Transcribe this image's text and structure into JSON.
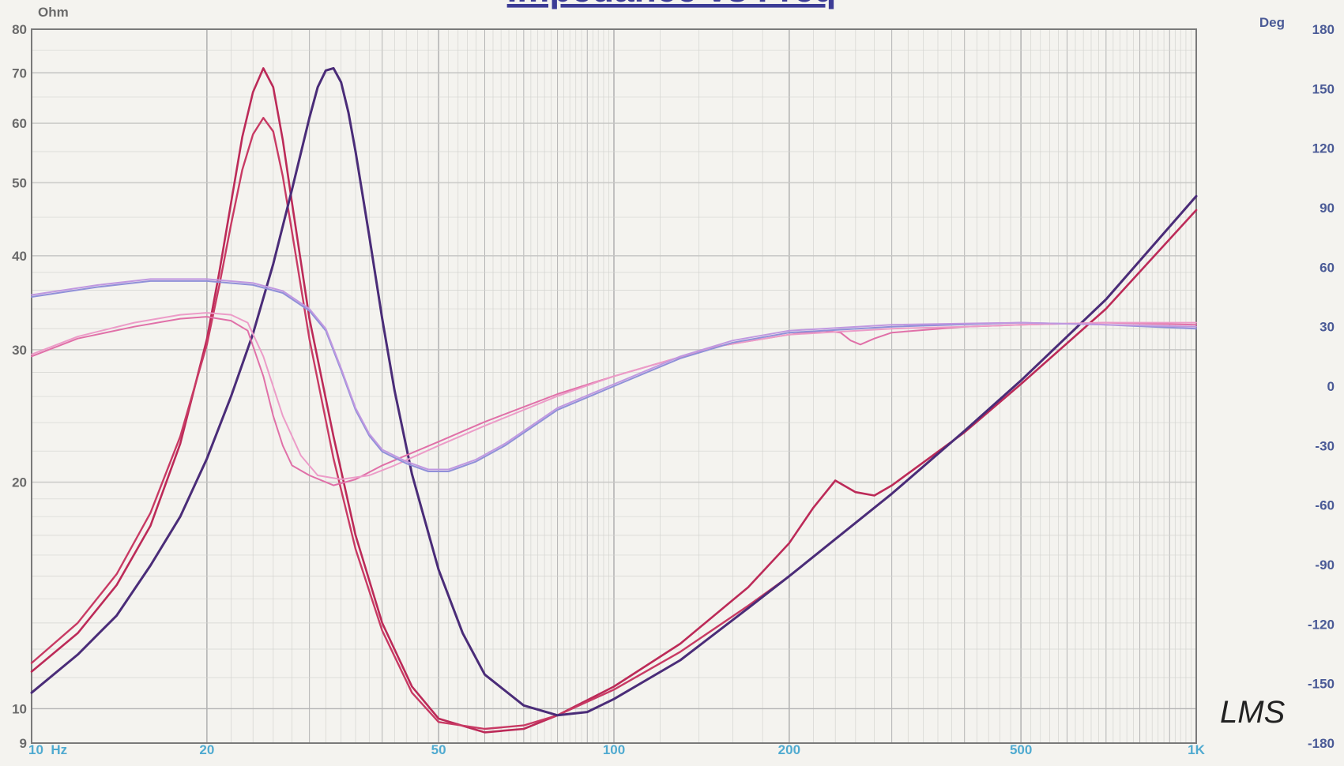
{
  "chart_data": {
    "type": "line",
    "title": "Impedance vs Freq",
    "watermark": "LMS",
    "x_scale": "log",
    "x_unit": "Hz",
    "xlim": [
      10,
      1000
    ],
    "x_ticks": [
      {
        "value": 10,
        "label": "10  Hz"
      },
      {
        "value": 20,
        "label": "20"
      },
      {
        "value": 50,
        "label": "50"
      },
      {
        "value": 100,
        "label": "100"
      },
      {
        "value": 200,
        "label": "200"
      },
      {
        "value": 500,
        "label": "500"
      },
      {
        "value": 1000,
        "label": "1K"
      }
    ],
    "y_left": {
      "label": "Ohm",
      "scale": "log",
      "ylim": [
        9,
        80
      ],
      "ticks": [
        {
          "value": 80,
          "label": "80"
        },
        {
          "value": 70,
          "label": "70"
        },
        {
          "value": 60,
          "label": "60"
        },
        {
          "value": 50,
          "label": "50"
        },
        {
          "value": 40,
          "label": "40"
        },
        {
          "value": 30,
          "label": "30"
        },
        {
          "value": 20,
          "label": "20"
        },
        {
          "value": 10,
          "label": "10"
        },
        {
          "value": 9,
          "label": "9"
        }
      ]
    },
    "y_right": {
      "label": "Deg",
      "scale": "linear",
      "ylim": [
        -180,
        180
      ],
      "ticks": [
        {
          "value": 180,
          "label": "180"
        },
        {
          "value": 150,
          "label": "150"
        },
        {
          "value": 120,
          "label": "120"
        },
        {
          "value": 90,
          "label": "90"
        },
        {
          "value": 60,
          "label": "60"
        },
        {
          "value": 30,
          "label": "30"
        },
        {
          "value": 0,
          "label": "0"
        },
        {
          "value": -30,
          "label": "-30"
        },
        {
          "value": -60,
          "label": "-60"
        },
        {
          "value": -90,
          "label": "-90"
        },
        {
          "value": -120,
          "label": "-120"
        },
        {
          "value": -150,
          "label": "-150"
        },
        {
          "value": -180,
          "label": "-180"
        }
      ]
    },
    "grid": true,
    "colors": {
      "background": "#f4f3ef",
      "grid": "#b4b4b4",
      "axis_text_left": "#6a6a6a",
      "axis_text_right": "#4a5a96",
      "x_tick_text": "#4faad0",
      "title": "#3c3c96",
      "watermark": "#222222"
    },
    "series": [
      {
        "axis": "left",
        "color": "#bc2a58",
        "width": 2.6,
        "points": [
          [
            10,
            11.2
          ],
          [
            12,
            12.6
          ],
          [
            14,
            14.6
          ],
          [
            16,
            17.5
          ],
          [
            18,
            22.5
          ],
          [
            20,
            31.0
          ],
          [
            21,
            38.0
          ],
          [
            22,
            47.0
          ],
          [
            23,
            57.5
          ],
          [
            24,
            66.0
          ],
          [
            25,
            71.0
          ],
          [
            26,
            67.0
          ],
          [
            27,
            57.0
          ],
          [
            28,
            47.0
          ],
          [
            30,
            33.0
          ],
          [
            33,
            23.0
          ],
          [
            36,
            17.0
          ],
          [
            40,
            13.0
          ],
          [
            45,
            10.7
          ],
          [
            50,
            9.7
          ],
          [
            60,
            9.3
          ],
          [
            70,
            9.4
          ],
          [
            80,
            9.8
          ],
          [
            100,
            10.7
          ],
          [
            130,
            12.2
          ],
          [
            170,
            14.5
          ],
          [
            200,
            16.6
          ],
          [
            220,
            18.5
          ],
          [
            240,
            20.1
          ],
          [
            260,
            19.4
          ],
          [
            280,
            19.2
          ],
          [
            300,
            19.8
          ],
          [
            400,
            23.3
          ],
          [
            500,
            27.0
          ],
          [
            700,
            34.0
          ],
          [
            1000,
            46.0
          ]
        ]
      },
      {
        "axis": "left",
        "color": "#c83a64",
        "width": 2.4,
        "points": [
          [
            10,
            11.5
          ],
          [
            12,
            13.0
          ],
          [
            14,
            15.1
          ],
          [
            16,
            18.2
          ],
          [
            18,
            23.0
          ],
          [
            20,
            30.5
          ],
          [
            21,
            36.5
          ],
          [
            22,
            44.0
          ],
          [
            23,
            52.0
          ],
          [
            24,
            58.0
          ],
          [
            25,
            61.0
          ],
          [
            26,
            58.5
          ],
          [
            27,
            51.0
          ],
          [
            28,
            43.0
          ],
          [
            30,
            31.0
          ],
          [
            33,
            21.5
          ],
          [
            36,
            16.3
          ],
          [
            40,
            12.7
          ],
          [
            45,
            10.5
          ],
          [
            50,
            9.6
          ],
          [
            60,
            9.4
          ],
          [
            70,
            9.5
          ],
          [
            80,
            9.8
          ],
          [
            100,
            10.6
          ],
          [
            130,
            11.9
          ],
          [
            170,
            13.7
          ],
          [
            200,
            15.0
          ],
          [
            300,
            19.3
          ],
          [
            400,
            23.4
          ],
          [
            500,
            27.3
          ],
          [
            700,
            35.0
          ],
          [
            1000,
            48.0
          ]
        ]
      },
      {
        "axis": "left",
        "color": "#4a2c78",
        "width": 3,
        "points": [
          [
            10,
            10.5
          ],
          [
            12,
            11.8
          ],
          [
            14,
            13.3
          ],
          [
            16,
            15.5
          ],
          [
            18,
            18.0
          ],
          [
            20,
            21.5
          ],
          [
            22,
            26.0
          ],
          [
            24,
            31.5
          ],
          [
            26,
            39.0
          ],
          [
            28,
            49.0
          ],
          [
            30,
            61.0
          ],
          [
            31,
            67.0
          ],
          [
            32,
            70.5
          ],
          [
            33,
            71.0
          ],
          [
            34,
            68.0
          ],
          [
            35,
            62.0
          ],
          [
            36,
            55.0
          ],
          [
            38,
            42.5
          ],
          [
            40,
            33.0
          ],
          [
            42,
            26.5
          ],
          [
            45,
            20.5
          ],
          [
            50,
            15.3
          ],
          [
            55,
            12.6
          ],
          [
            60,
            11.1
          ],
          [
            70,
            10.1
          ],
          [
            80,
            9.8
          ],
          [
            90,
            9.9
          ],
          [
            100,
            10.3
          ],
          [
            130,
            11.6
          ],
          [
            170,
            13.6
          ],
          [
            200,
            15.0
          ],
          [
            300,
            19.3
          ],
          [
            400,
            23.4
          ],
          [
            500,
            27.3
          ],
          [
            700,
            35.0
          ],
          [
            1000,
            48.0
          ]
        ]
      },
      {
        "axis": "right",
        "color": "#e070a8",
        "width": 2,
        "points": [
          [
            10,
            15
          ],
          [
            12,
            24
          ],
          [
            15,
            30
          ],
          [
            18,
            34
          ],
          [
            20,
            35
          ],
          [
            22,
            33
          ],
          [
            23.5,
            28
          ],
          [
            25,
            5
          ],
          [
            26,
            -15
          ],
          [
            27,
            -30
          ],
          [
            28,
            -40
          ],
          [
            30,
            -45
          ],
          [
            33,
            -50
          ],
          [
            36,
            -47
          ],
          [
            40,
            -40
          ],
          [
            50,
            -28
          ],
          [
            60,
            -18
          ],
          [
            80,
            -4
          ],
          [
            100,
            5
          ],
          [
            150,
            20
          ],
          [
            200,
            26
          ],
          [
            230,
            28
          ],
          [
            245,
            27
          ],
          [
            255,
            23
          ],
          [
            265,
            21
          ],
          [
            280,
            24
          ],
          [
            300,
            27
          ],
          [
            400,
            30
          ],
          [
            500,
            31
          ],
          [
            700,
            32
          ],
          [
            1000,
            31
          ]
        ]
      },
      {
        "axis": "right",
        "color": "#ec9cc8",
        "width": 2,
        "points": [
          [
            10,
            16
          ],
          [
            12,
            25
          ],
          [
            15,
            32
          ],
          [
            18,
            36
          ],
          [
            20,
            37
          ],
          [
            22,
            36
          ],
          [
            23.5,
            32
          ],
          [
            25,
            15
          ],
          [
            27,
            -15
          ],
          [
            29,
            -35
          ],
          [
            31,
            -45
          ],
          [
            34,
            -47
          ],
          [
            38,
            -45
          ],
          [
            42,
            -40
          ],
          [
            50,
            -30
          ],
          [
            60,
            -20
          ],
          [
            80,
            -5
          ],
          [
            100,
            5
          ],
          [
            150,
            20
          ],
          [
            200,
            26
          ],
          [
            300,
            29
          ],
          [
            400,
            30
          ],
          [
            500,
            31
          ],
          [
            700,
            32
          ],
          [
            1000,
            32
          ]
        ]
      },
      {
        "axis": "right",
        "color": "#9090d8",
        "width": 2,
        "points": [
          [
            10,
            45
          ],
          [
            13,
            50
          ],
          [
            16,
            53
          ],
          [
            20,
            53
          ],
          [
            24,
            51
          ],
          [
            27,
            47
          ],
          [
            30,
            38
          ],
          [
            32,
            28
          ],
          [
            34,
            8
          ],
          [
            36,
            -12
          ],
          [
            38,
            -25
          ],
          [
            40,
            -33
          ],
          [
            44,
            -39
          ],
          [
            48,
            -43
          ],
          [
            52,
            -43
          ],
          [
            58,
            -38
          ],
          [
            65,
            -30
          ],
          [
            80,
            -12
          ],
          [
            100,
            0
          ],
          [
            130,
            14
          ],
          [
            160,
            22
          ],
          [
            200,
            27
          ],
          [
            300,
            30
          ],
          [
            500,
            32
          ],
          [
            700,
            31
          ],
          [
            1000,
            29
          ]
        ]
      },
      {
        "axis": "right",
        "color": "#c098e0",
        "width": 2,
        "points": [
          [
            10,
            46
          ],
          [
            13,
            51
          ],
          [
            16,
            54
          ],
          [
            20,
            54
          ],
          [
            24,
            52
          ],
          [
            27,
            48
          ],
          [
            30,
            39
          ],
          [
            32,
            29
          ],
          [
            34,
            9
          ],
          [
            36,
            -11
          ],
          [
            38,
            -24
          ],
          [
            40,
            -32
          ],
          [
            44,
            -38
          ],
          [
            48,
            -42
          ],
          [
            52,
            -42
          ],
          [
            58,
            -37
          ],
          [
            65,
            -29
          ],
          [
            80,
            -11
          ],
          [
            100,
            1
          ],
          [
            130,
            15
          ],
          [
            160,
            23
          ],
          [
            200,
            28
          ],
          [
            300,
            31
          ],
          [
            500,
            32
          ],
          [
            700,
            31
          ],
          [
            1000,
            30
          ]
        ]
      }
    ]
  }
}
